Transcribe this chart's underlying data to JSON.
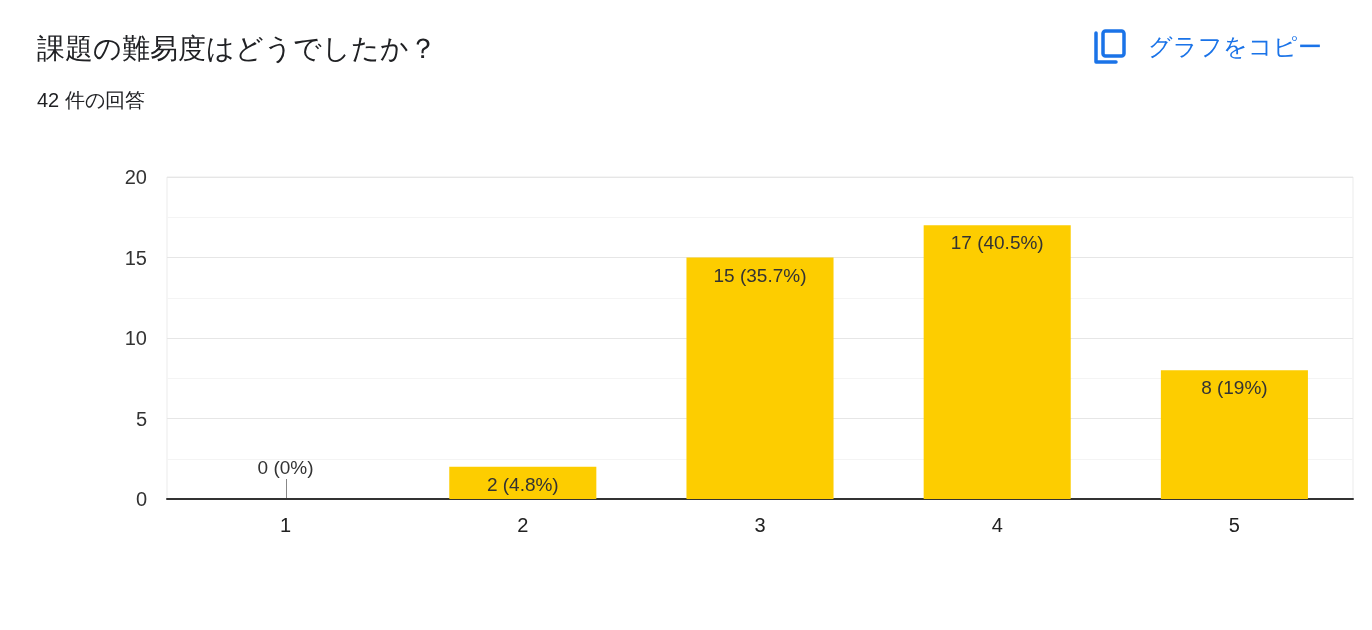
{
  "chart_data": {
    "type": "bar",
    "title": "課題の難易度はどうでしたか？",
    "subtitle": "42 件の回答",
    "annotations": [
      "グラフをコピー"
    ],
    "categories": [
      "1",
      "2",
      "3",
      "4",
      "5"
    ],
    "values": [
      0,
      2,
      15,
      17,
      8
    ],
    "color": "#fdcd00",
    "value_labels": [
      "0 (0%)",
      "2 (4.8%)",
      "15 (35.7%)",
      "17 (40.5%)",
      "8 (19%)"
    ],
    "ylim": [
      0,
      20
    ],
    "yticks": [
      0,
      {
        "value": 2.5,
        "label": null
      },
      5,
      {
        "value": 7.5,
        "label": null
      },
      10,
      {
        "value": 12.5,
        "label": null
      },
      15,
      {
        "value": 17.5,
        "label": null
      },
      20
    ],
    "grid": "y"
  }
}
